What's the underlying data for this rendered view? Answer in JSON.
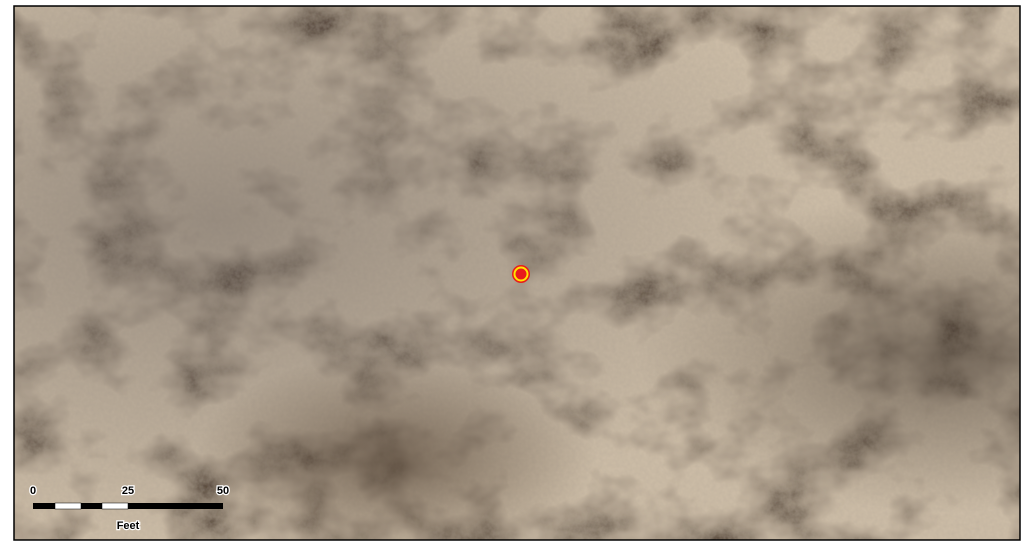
{
  "scale_bar": {
    "ticks": [
      0,
      25,
      50
    ],
    "unit": "Feet"
  }
}
